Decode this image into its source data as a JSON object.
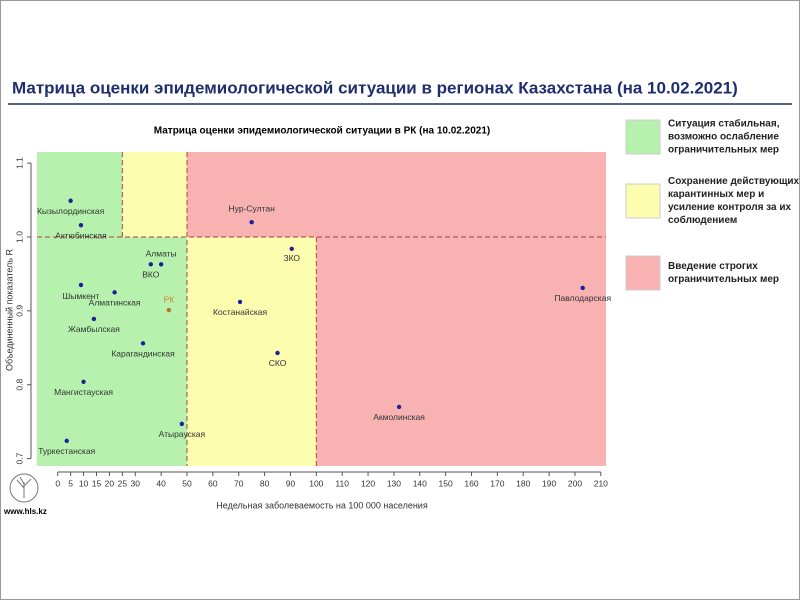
{
  "header": {
    "title": "Матрица оценки эпидемиологической ситуации в регионах Казахстана (на 10.02.2021)",
    "site": "www.hls.kz"
  },
  "chart_data": {
    "type": "scatter",
    "title": "Матрица оценки эпидемиологической ситуации в РК (на 10.02.2021)",
    "x_label": "Недельная заболеваемость на 100 000 населения",
    "y_label": "Объединенный показатель R",
    "xlim": [
      -8,
      212
    ],
    "ylim": [
      0.69,
      1.115
    ],
    "xticks": [
      0,
      5,
      10,
      15,
      20,
      25,
      30,
      40,
      50,
      60,
      70,
      80,
      90,
      100,
      110,
      120,
      130,
      140,
      150,
      160,
      170,
      180,
      190,
      200,
      210
    ],
    "yticks": [
      0.7,
      0.8,
      0.9,
      {
        "value": 1,
        "label": "1.0"
      },
      1.1
    ],
    "thresholds": {
      "x": [
        25,
        50,
        100
      ],
      "y": 1
    },
    "series": [
      {
        "color": "#1f1f9a",
        "labels": [
          "Кызылординская",
          "Актюбинская",
          "Шымкент",
          "Алматинская",
          "Алматы",
          "ВКО",
          "Жамбылская",
          "Карагандинская",
          "Мангистауская",
          "Атырауская",
          "Туркестанская",
          "Нур-Султан",
          "ЗКО",
          "Костанайская",
          "СКО",
          "Акмолинская",
          "Павлодарская"
        ],
        "x": [
          5,
          9,
          9,
          22,
          40,
          36,
          14,
          33,
          10,
          48,
          3.5,
          75,
          90.5,
          70.5,
          85,
          132,
          203
        ],
        "values": [
          1.049,
          1.016,
          0.935,
          0.925,
          0.963,
          0.963,
          0.889,
          0.856,
          0.804,
          0.747,
          0.724,
          1.02,
          0.984,
          0.912,
          0.843,
          0.77,
          0.931
        ]
      },
      {
        "color": "#c0702a",
        "label_color": "#d08030",
        "labels": [
          "РК"
        ],
        "x": [
          43
        ],
        "values": [
          0.901
        ]
      }
    ],
    "legend": [
      {
        "color": "#b6f2ad",
        "lines": [
          "Ситуация стабильная,",
          "возможно ослабление",
          "ограничительных мер"
        ]
      },
      {
        "color": "#fdfdb0",
        "lines": [
          "Сохранение действующих",
          "карантинных мер и",
          "усиление контроля за их",
          "соблюдением"
        ]
      },
      {
        "color": "#f8b2b2",
        "lines": [
          "Введение строгих",
          "ограничительных мер"
        ]
      }
    ]
  }
}
